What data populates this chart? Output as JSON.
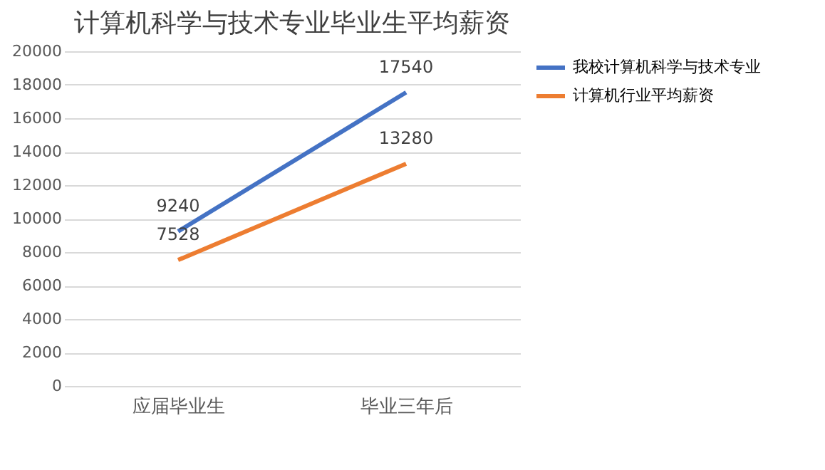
{
  "chart_data": {
    "type": "line",
    "title": "计算机科学与技术专业毕业生平均薪资",
    "categories": [
      "应届毕业生",
      "毕业三年后"
    ],
    "series": [
      {
        "name": "我校计算机科学与技术专业",
        "color": "#4472c4",
        "values": [
          9240,
          17540
        ]
      },
      {
        "name": "计算机行业平均薪资",
        "color": "#ed7d31",
        "values": [
          7528,
          13280
        ]
      }
    ],
    "ylim": [
      0,
      20000
    ],
    "yticks": [
      0,
      2000,
      4000,
      6000,
      8000,
      10000,
      12000,
      14000,
      16000,
      18000,
      20000
    ],
    "grid": "y",
    "legend": "right",
    "data_labels": true,
    "marker": "none",
    "line_style": "solid"
  }
}
